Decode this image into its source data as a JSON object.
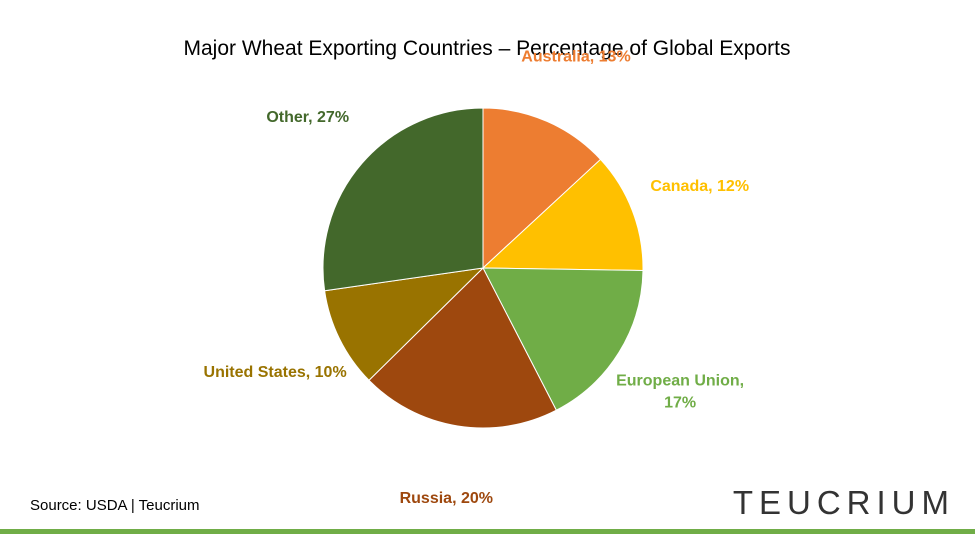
{
  "chart_data": {
    "type": "pie",
    "title": "Major Wheat Exporting Countries – Percentage of Global Exports",
    "start_angle_deg": 0,
    "direction": "clockwise",
    "slices": [
      {
        "name": "Australia",
        "value": 13,
        "label_lines": [
          "Australia, 13%"
        ],
        "color": "#ED7D31"
      },
      {
        "name": "Canada",
        "value": 12,
        "label_lines": [
          "Canada, 12%"
        ],
        "color": "#FFC000"
      },
      {
        "name": "European Union",
        "value": 17,
        "label_lines": [
          "European Union,",
          "17%"
        ],
        "color": "#70AD47"
      },
      {
        "name": "Russia",
        "value": 20,
        "label_lines": [
          "Russia, 20%"
        ],
        "color": "#9E480E"
      },
      {
        "name": "United States",
        "value": 10,
        "label_lines": [
          "United States, 10%"
        ],
        "color": "#997300"
      },
      {
        "name": "Other",
        "value": 27,
        "label_lines": [
          "Other, 27%"
        ],
        "color": "#43682B"
      }
    ]
  },
  "footer": {
    "source": "Source: USDA | Teucrium",
    "logo": "TEUCRIUM",
    "rule_color": "#70AD47"
  }
}
